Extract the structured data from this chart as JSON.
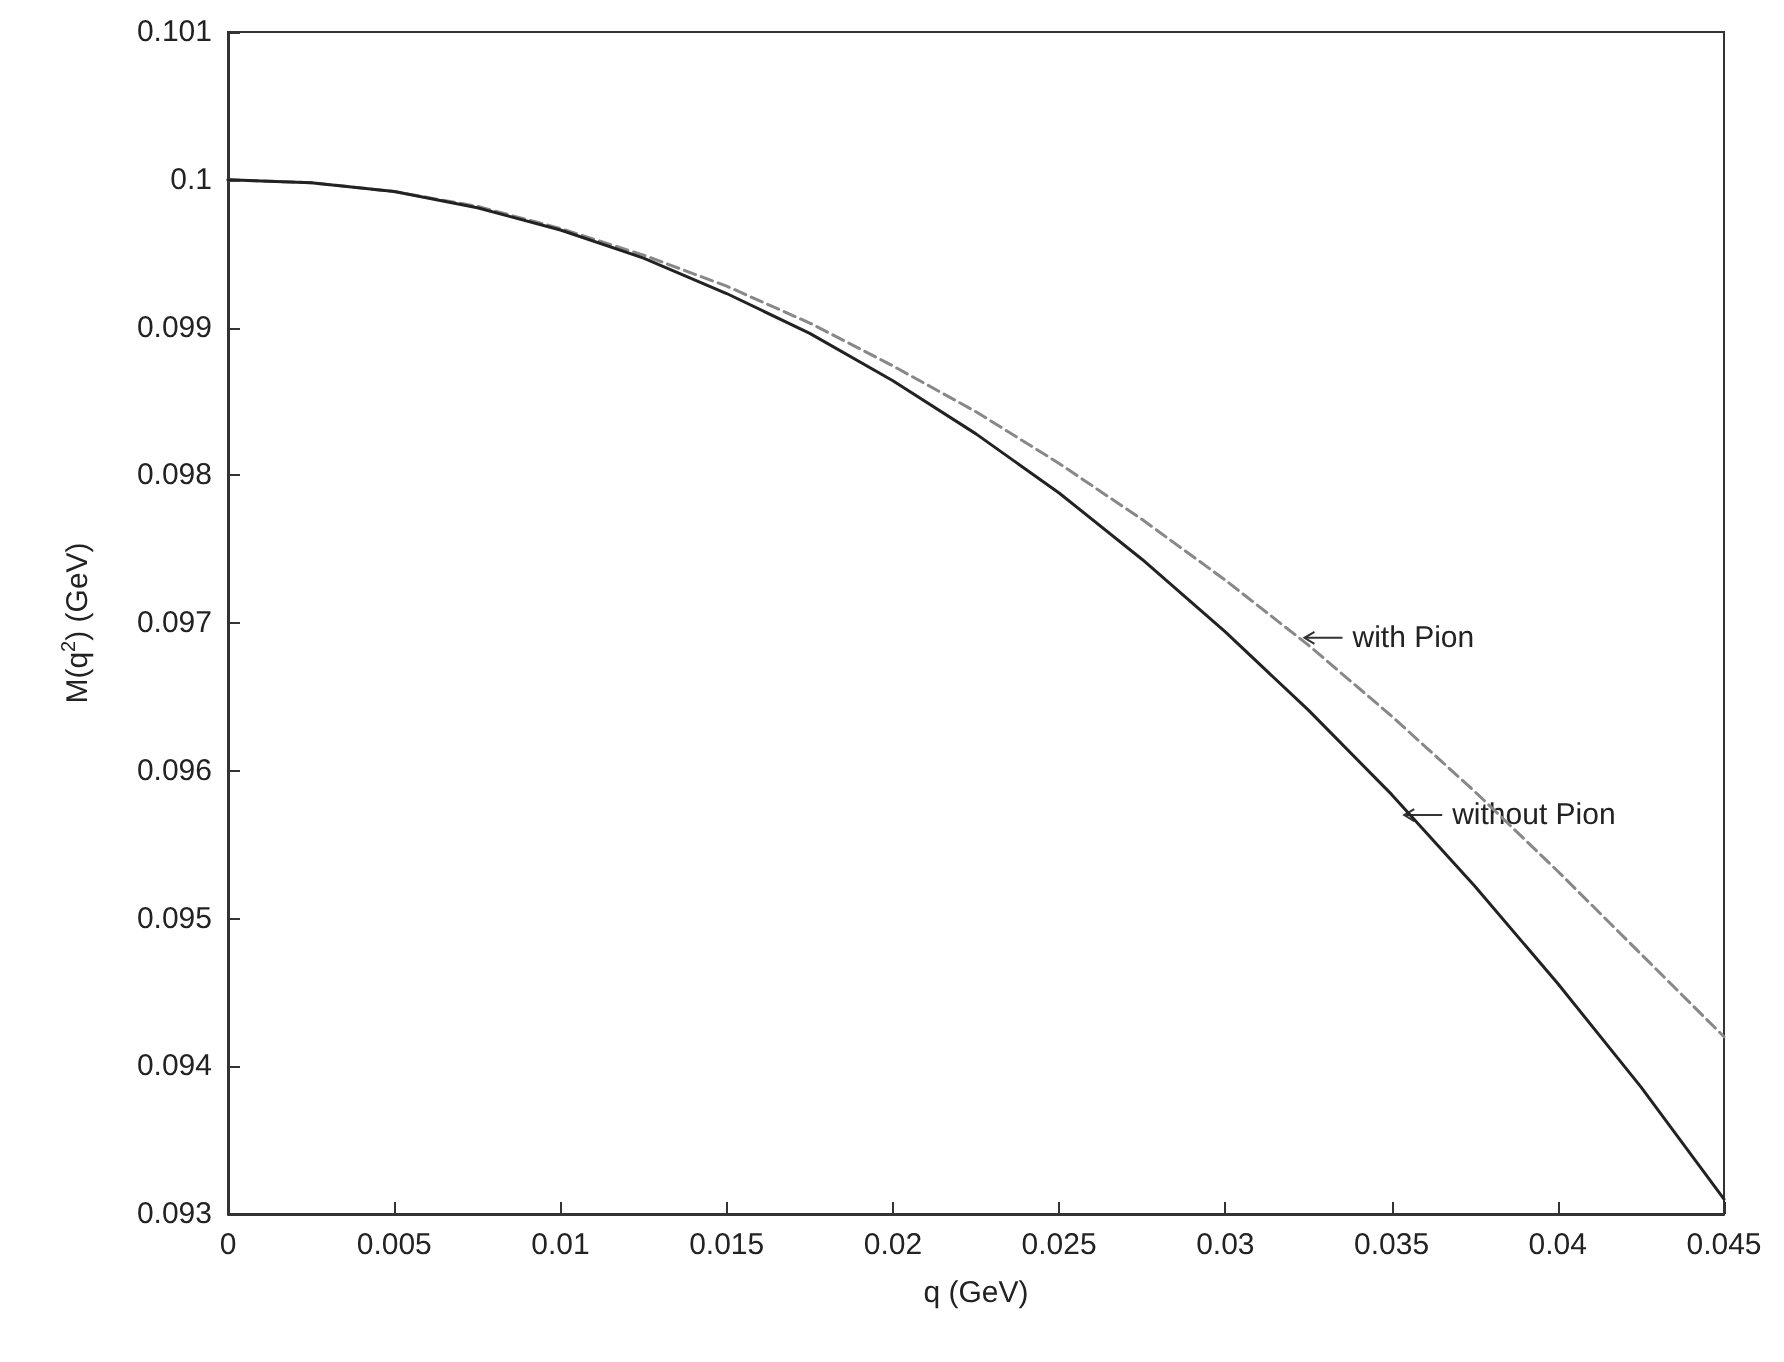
{
  "chart_data": {
    "type": "line",
    "xlabel": "q (GeV)",
    "ylabel": "M(q$^{2}$) (GeV)",
    "x": [
      0,
      0.0025,
      0.005,
      0.0075,
      0.01,
      0.0125,
      0.015,
      0.0175,
      0.02,
      0.0225,
      0.025,
      0.0275,
      0.03,
      0.0325,
      0.035,
      0.0375,
      0.04,
      0.0425,
      0.045
    ],
    "series": [
      {
        "color": "#888888",
        "line_style": "dashed",
        "values": [
          0.1,
          0.09998,
          0.09992,
          0.09982,
          0.09967,
          0.09949,
          0.09928,
          0.09903,
          0.09874,
          0.09843,
          0.09808,
          0.0977,
          0.09729,
          0.09685,
          0.09637,
          0.09586,
          0.09532,
          0.09476,
          0.0942
        ]
      },
      {
        "color": "#222222",
        "line_style": "solid",
        "values": [
          0.1,
          0.09998,
          0.09992,
          0.09981,
          0.09966,
          0.09947,
          0.09923,
          0.09896,
          0.09864,
          0.09828,
          0.09788,
          0.09743,
          0.09694,
          0.09641,
          0.09584,
          0.09522,
          0.09456,
          0.09386,
          0.0931
        ]
      }
    ],
    "annotations": [
      {
        "text": "with Pion",
        "x": 0.0322,
        "y": 0.0969
      },
      {
        "text": "without Pion",
        "x": 0.0352,
        "y": 0.0957
      }
    ],
    "xlim": [
      0,
      0.045
    ],
    "xticks": [
      0,
      0.005,
      0.01,
      0.015,
      0.02,
      0.025,
      0.03,
      0.035,
      0.04,
      0.045
    ],
    "ylim": [
      0.093,
      0.101
    ],
    "yticks": [
      0.093,
      0.094,
      0.095,
      0.096,
      0.097,
      0.098,
      0.099,
      0.1,
      0.101
    ],
    "grid": false,
    "marker": "none"
  }
}
